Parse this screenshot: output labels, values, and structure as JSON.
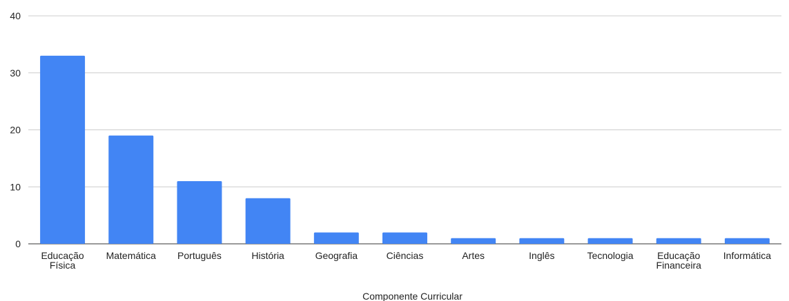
{
  "chart_data": {
    "type": "bar",
    "categories": [
      "Educação Física",
      "Matemática",
      "Português",
      "História",
      "Geografia",
      "Ciências",
      "Artes",
      "Inglês",
      "Tecnologia",
      "Educação Financeira",
      "Informática"
    ],
    "category_lines": [
      [
        "Educação",
        "Física"
      ],
      [
        "Matemática"
      ],
      [
        "Português"
      ],
      [
        "História"
      ],
      [
        "Geografia"
      ],
      [
        "Ciências"
      ],
      [
        "Artes"
      ],
      [
        "Inglês"
      ],
      [
        "Tecnologia"
      ],
      [
        "Educação",
        "Financeira"
      ],
      [
        "Informática"
      ]
    ],
    "values": [
      33,
      19,
      11,
      8,
      2,
      2,
      1,
      1,
      1,
      1,
      1
    ],
    "title": "",
    "xlabel": "Componente Curricular",
    "ylabel": "",
    "ylim": [
      0,
      40
    ],
    "yticks": [
      0,
      10,
      20,
      30,
      40
    ],
    "grid": true,
    "bar_color": "#4285f4"
  }
}
